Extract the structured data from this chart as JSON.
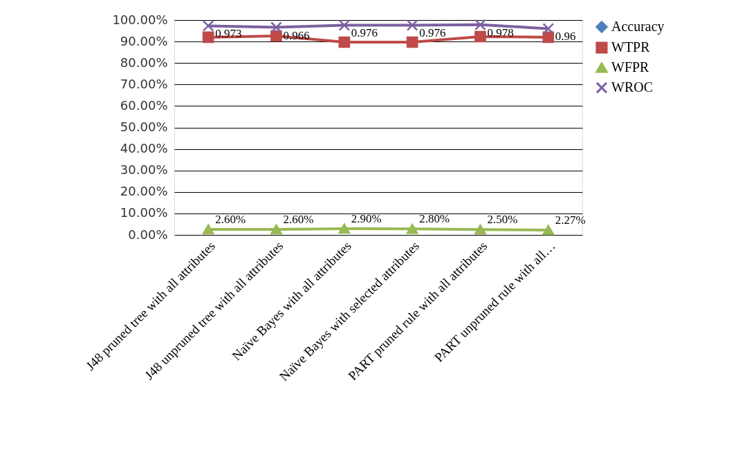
{
  "chart_data": {
    "type": "line",
    "categories": [
      "J48 pruned tree with all attributes",
      "J48 unpruned tree  with all attributes",
      "Naïve Bayes with all attributes",
      "Naïve Bayes with selected attributes",
      "PART  pruned rule with all attributes",
      "PART  unpruned rule with all…"
    ],
    "series": [
      {
        "name": "Accuracy",
        "color": "#4a7ebb",
        "marker": "diamond",
        "values": [
          null,
          null,
          null,
          null,
          null,
          null
        ]
      },
      {
        "name": "WTPR",
        "color": "#be4b48",
        "marker": "square",
        "values": [
          0.92,
          0.926,
          0.897,
          0.897,
          0.923,
          0.92
        ]
      },
      {
        "name": "WFPR",
        "color": "#98b954",
        "marker": "triangle",
        "values": [
          0.026,
          0.026,
          0.029,
          0.028,
          0.025,
          0.0227
        ],
        "value_labels": [
          "2.60%",
          "2.60%",
          "2.90%",
          "2.80%",
          "2.50%",
          "2.27%"
        ]
      },
      {
        "name": "WROC",
        "color": "#7d60a0",
        "marker": "cross",
        "values": [
          0.973,
          0.966,
          0.976,
          0.976,
          0.978,
          0.96
        ],
        "value_labels": [
          "0.973",
          "0.966",
          "0.976",
          "0.976",
          "0.978",
          "0.96"
        ]
      }
    ],
    "ylim": [
      0,
      1
    ],
    "yticks": [
      {
        "value": 0,
        "label": "0.00%"
      },
      {
        "value": 0.1,
        "label": "10.00%"
      },
      {
        "value": 0.2,
        "label": "20.00%"
      },
      {
        "value": 0.3,
        "label": "30.00%"
      },
      {
        "value": 0.4,
        "label": "40.00%"
      },
      {
        "value": 0.5,
        "label": "50.00%"
      },
      {
        "value": 0.6,
        "label": "60.00%"
      },
      {
        "value": 0.7,
        "label": "70.00%"
      },
      {
        "value": 0.8,
        "label": "80.00%"
      },
      {
        "value": 0.9,
        "label": "90.00%"
      },
      {
        "value": 1,
        "label": "100.00%"
      }
    ],
    "grid": "y",
    "legend": "right",
    "line_style": "solid"
  }
}
